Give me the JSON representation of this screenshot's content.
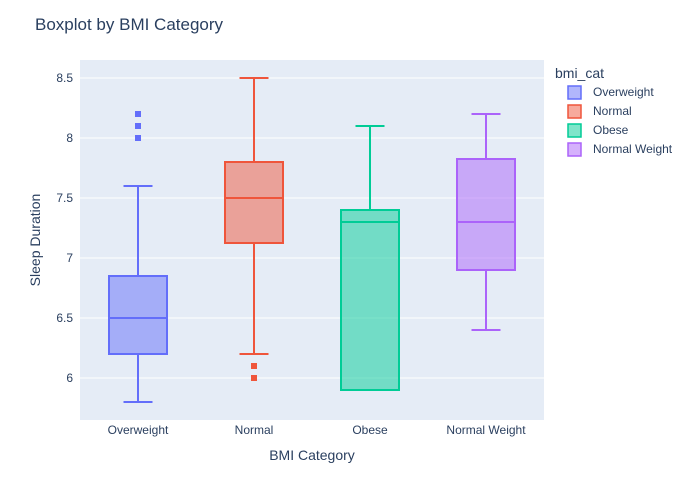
{
  "chart_data": {
    "type": "boxplot",
    "title": "Boxplot by BMI Category",
    "xlabel": "BMI Category",
    "ylabel": "Sleep Duration",
    "ylim": [
      5.65,
      8.65
    ],
    "yticks": [
      6,
      6.5,
      7,
      7.5,
      8,
      8.5
    ],
    "ytick_labels": [
      "6",
      "6.5",
      "7",
      "7.5",
      "8",
      "8.5"
    ],
    "grid": true,
    "legend_title": "bmi_cat",
    "legend_position": "right",
    "plot_bg": "#e5ecf6",
    "categories": [
      "Overweight",
      "Normal",
      "Obese",
      "Normal Weight"
    ],
    "series": [
      {
        "name": "Overweight",
        "color": "#636efa",
        "fill": "rgba(99,110,250,0.5)",
        "min": 5.8,
        "q1": 6.2,
        "median": 6.5,
        "q3": 6.85,
        "max": 7.6,
        "outliers": [
          8.0,
          8.1,
          8.2
        ]
      },
      {
        "name": "Normal",
        "color": "#ef553b",
        "fill": "rgba(239,85,59,0.5)",
        "min": 6.2,
        "q1": 7.125,
        "median": 7.5,
        "q3": 7.8,
        "max": 8.5,
        "outliers": [
          6.0,
          6.1
        ]
      },
      {
        "name": "Obese",
        "color": "#00cc96",
        "fill": "rgba(0,204,150,0.5)",
        "min": 5.9,
        "q1": 5.9,
        "median": 7.3,
        "q3": 7.4,
        "max": 8.1,
        "outliers": []
      },
      {
        "name": "Normal Weight",
        "color": "#ab63fa",
        "fill": "rgba(171,99,250,0.5)",
        "min": 6.4,
        "q1": 6.9,
        "median": 7.3,
        "q3": 7.825,
        "max": 8.2,
        "outliers": []
      }
    ]
  }
}
